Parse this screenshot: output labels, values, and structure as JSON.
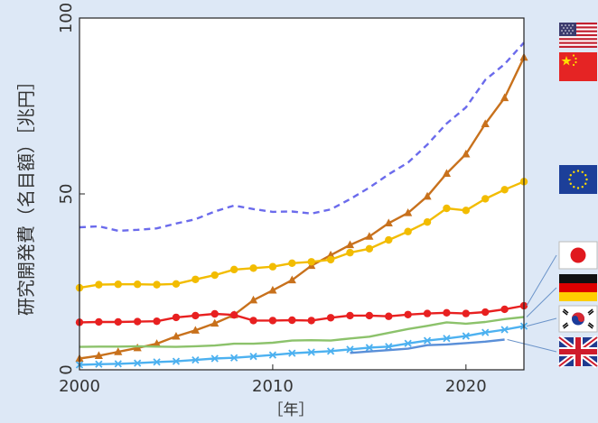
{
  "chart_data": {
    "type": "line",
    "ylabel": "研究開発費（名目額）［兆円］",
    "xlabel": "［年］",
    "xlim": [
      2000,
      2023
    ],
    "ylim": [
      0,
      100
    ],
    "x_ticks": [
      2000,
      2010,
      2020
    ],
    "y_ticks": [
      0,
      50,
      100
    ],
    "grid": false,
    "legend": "right, flag icons",
    "series": [
      {
        "id": "us",
        "flag": "us-flag-icon",
        "color": "#c8711c",
        "style": "solid",
        "marker": "triangle",
        "x": [
          2000,
          2001,
          2002,
          2003,
          2004,
          2005,
          2006,
          2007,
          2008,
          2009,
          2010,
          2011,
          2012,
          2013,
          2014,
          2015,
          2016,
          2017,
          2018,
          2019,
          2020,
          2021,
          2022,
          2023
        ],
        "values": [
          3.2,
          4.0,
          5.1,
          6.2,
          7.4,
          9.5,
          11.2,
          13.2,
          15.6,
          19.8,
          22.6,
          25.5,
          29.6,
          32.6,
          35.5,
          37.9,
          41.7,
          44.6,
          49.3,
          55.8,
          61.3,
          69.9,
          77.3,
          88.8
        ]
      },
      {
        "id": "china",
        "flag": "china-flag-icon",
        "color": "#6b6bec",
        "style": "dashed",
        "marker": "none",
        "x": [
          2000,
          2001,
          2002,
          2003,
          2004,
          2005,
          2006,
          2007,
          2008,
          2009,
          2010,
          2011,
          2012,
          2013,
          2014,
          2015,
          2016,
          2017,
          2018,
          2019,
          2020,
          2021,
          2022,
          2023
        ],
        "values": [
          40.5,
          40.8,
          39.5,
          39.8,
          40.2,
          41.6,
          42.8,
          45.0,
          46.7,
          45.7,
          44.9,
          45.0,
          44.4,
          45.6,
          48.5,
          51.8,
          55.6,
          58.9,
          64.0,
          70.0,
          74.6,
          82.4,
          86.9,
          93.0
        ]
      },
      {
        "id": "eu",
        "flag": "eu-flag-icon",
        "color": "#f2bc00",
        "style": "solid",
        "marker": "circle",
        "x": [
          2000,
          2001,
          2002,
          2003,
          2004,
          2005,
          2006,
          2007,
          2008,
          2009,
          2010,
          2011,
          2012,
          2013,
          2014,
          2015,
          2016,
          2017,
          2018,
          2019,
          2020,
          2021,
          2022,
          2023
        ],
        "values": [
          23.3,
          24.2,
          24.3,
          24.3,
          24.2,
          24.4,
          25.7,
          26.9,
          28.5,
          28.9,
          29.3,
          30.3,
          30.7,
          31.3,
          33.3,
          34.4,
          36.9,
          39.3,
          42.0,
          45.9,
          45.3,
          48.6,
          51.2,
          53.5
        ]
      },
      {
        "id": "japan",
        "flag": "japan-flag-icon",
        "color": "#e82020",
        "style": "solid",
        "marker": "circle",
        "x": [
          2000,
          2001,
          2002,
          2003,
          2004,
          2005,
          2006,
          2007,
          2008,
          2009,
          2010,
          2011,
          2012,
          2013,
          2014,
          2015,
          2016,
          2017,
          2018,
          2019,
          2020,
          2021,
          2022,
          2023
        ],
        "values": [
          13.5,
          13.6,
          13.6,
          13.7,
          13.8,
          14.9,
          15.4,
          15.9,
          15.6,
          14.0,
          14.0,
          14.1,
          14.0,
          14.8,
          15.4,
          15.4,
          15.2,
          15.7,
          16.0,
          16.2,
          16.0,
          16.4,
          17.2,
          18.2
        ]
      },
      {
        "id": "germany",
        "flag": "germany-flag-icon",
        "color": "#8cc26b",
        "style": "solid",
        "marker": "none",
        "x": [
          2000,
          2001,
          2002,
          2003,
          2004,
          2005,
          2006,
          2007,
          2008,
          2009,
          2010,
          2011,
          2012,
          2013,
          2014,
          2015,
          2016,
          2017,
          2018,
          2019,
          2020,
          2021,
          2022,
          2023
        ],
        "values": [
          6.5,
          6.6,
          6.6,
          6.7,
          6.6,
          6.5,
          6.7,
          6.9,
          7.4,
          7.4,
          7.7,
          8.3,
          8.4,
          8.3,
          8.9,
          9.4,
          10.5,
          11.6,
          12.5,
          13.5,
          13.1,
          13.6,
          14.4,
          15.0
        ]
      },
      {
        "id": "korea",
        "flag": "korea-flag-icon",
        "color": "#4db1f0",
        "style": "solid",
        "marker": "x",
        "x": [
          2000,
          2001,
          2002,
          2003,
          2004,
          2005,
          2006,
          2007,
          2008,
          2009,
          2010,
          2011,
          2012,
          2013,
          2014,
          2015,
          2016,
          2017,
          2018,
          2019,
          2020,
          2021,
          2022,
          2023
        ],
        "values": [
          1.4,
          1.6,
          1.7,
          1.9,
          2.2,
          2.4,
          2.8,
          3.2,
          3.4,
          3.8,
          4.2,
          4.7,
          5.0,
          5.3,
          5.8,
          6.3,
          6.6,
          7.5,
          8.3,
          8.9,
          9.6,
          10.6,
          11.4,
          12.4
        ]
      },
      {
        "id": "uk",
        "flag": "uk-flag-icon",
        "color": "#5a8fd8",
        "style": "solid",
        "marker": "none",
        "x": [
          2014,
          2015,
          2016,
          2017,
          2018,
          2019,
          2020,
          2021,
          2022
        ],
        "values": [
          4.8,
          5.2,
          5.6,
          6.0,
          7.0,
          7.2,
          7.6,
          8.0,
          8.6
        ]
      }
    ]
  }
}
